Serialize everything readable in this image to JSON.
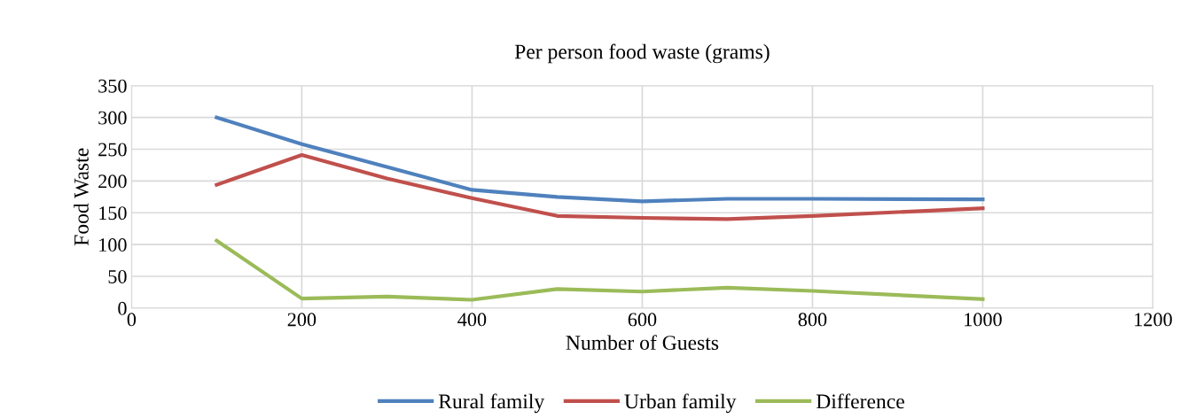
{
  "chart_data": {
    "type": "line",
    "title": "Per person food waste (grams)",
    "xlabel": "Number of Guests",
    "ylabel": "Food Waste",
    "x": [
      100,
      200,
      300,
      400,
      500,
      600,
      700,
      800,
      1000
    ],
    "series": [
      {
        "name": "Rural family",
        "color": "#4f81bd",
        "values": [
          300,
          258,
          222,
          186,
          175,
          168,
          172,
          172,
          171
        ]
      },
      {
        "name": "Urban family",
        "color": "#c0504d",
        "values": [
          194,
          241,
          204,
          173,
          145,
          142,
          140,
          145,
          157
        ]
      },
      {
        "name": "Difference",
        "color": "#9bbb59",
        "values": [
          106,
          15,
          18,
          13,
          30,
          26,
          32,
          27,
          14
        ]
      }
    ],
    "xlim": [
      0,
      1200
    ],
    "xticks": [
      0,
      200,
      400,
      600,
      800,
      1000,
      1200
    ],
    "ylim": [
      0,
      350
    ],
    "yticks": [
      0,
      50,
      100,
      150,
      200,
      250,
      300,
      350
    ],
    "grid": true,
    "legend": "bottom",
    "marker": "none",
    "line_style": "solid"
  }
}
